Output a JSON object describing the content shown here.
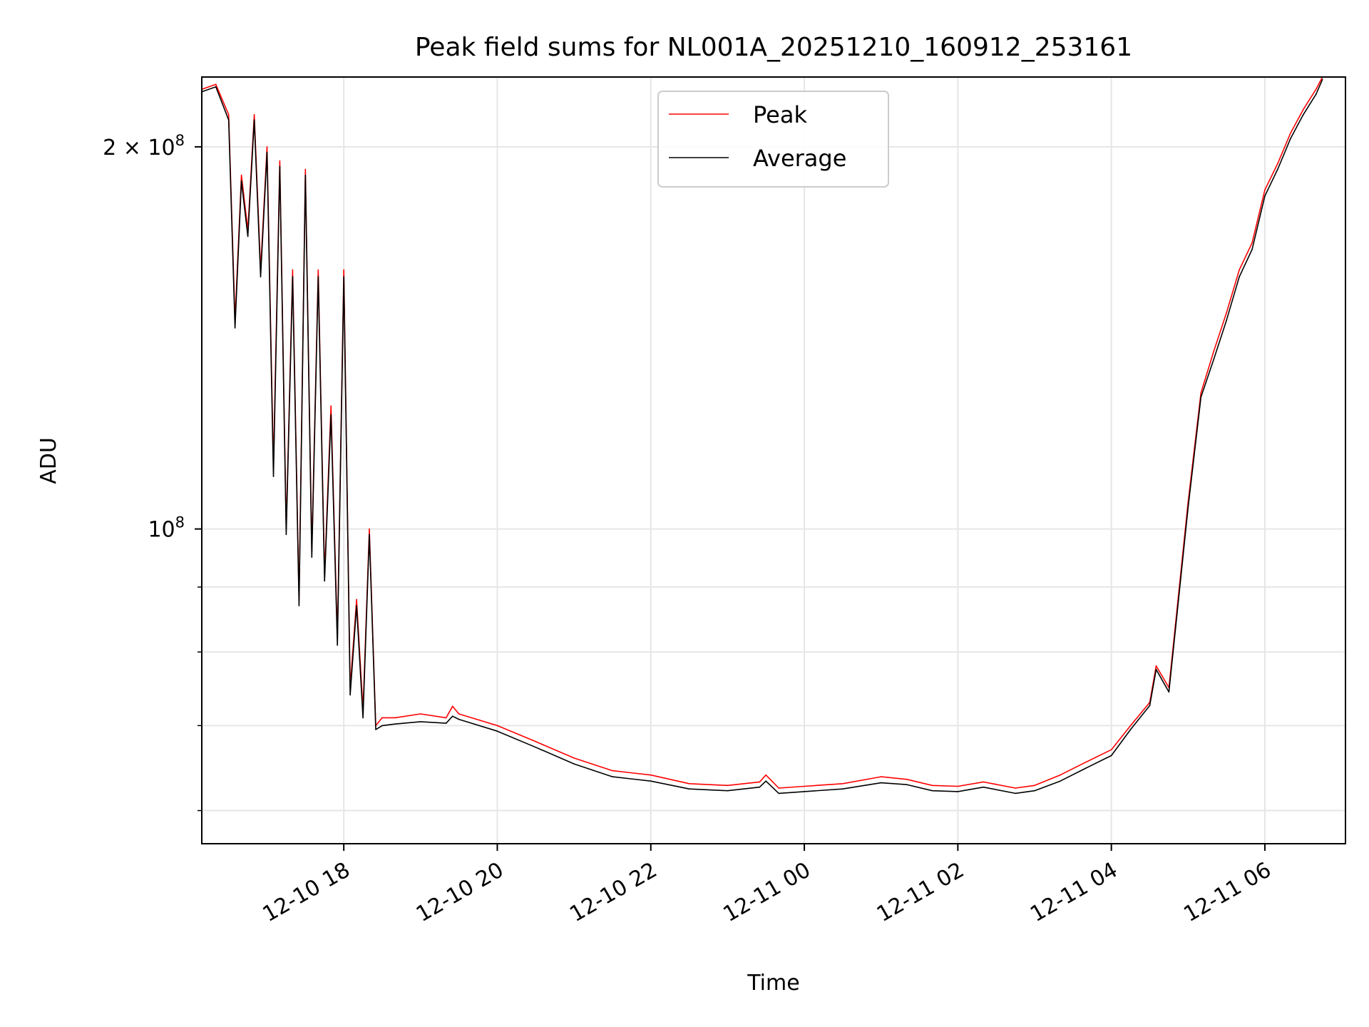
{
  "chart_data": {
    "type": "line",
    "title": "Peak field sums for NL001A_20251210_160912_253161",
    "xlabel": "Time",
    "ylabel": "ADU",
    "yscale": "log",
    "ylim": [
      56500000,
      227000000
    ],
    "xlim": [
      "2025-12-10 16:09",
      "2025-12-11 07:03"
    ],
    "grid": true,
    "legend": {
      "placement": "top-center"
    },
    "x_ticks": [
      "12-10 18",
      "12-10 20",
      "12-10 22",
      "12-11 00",
      "12-11 02",
      "12-11 04",
      "12-11 06"
    ],
    "x_tick_times": [
      "2025-12-10 18:00",
      "2025-12-10 20:00",
      "2025-12-10 22:00",
      "2025-12-11 00:00",
      "2025-12-11 02:00",
      "2025-12-11 04:00",
      "2025-12-11 06:00"
    ],
    "y_major_ticks": [
      {
        "value": 200000000,
        "label_base": "2 × 10",
        "label_exp": "8"
      },
      {
        "value": 100000000,
        "label_base": "10",
        "label_exp": "8"
      }
    ],
    "y_minor_tick_values": [
      60000000,
      70000000,
      80000000,
      90000000
    ],
    "series": [
      {
        "name": "Peak",
        "color": "#ff0000",
        "x": [
          "2025-12-10 16:09",
          "2025-12-10 16:20",
          "2025-12-10 16:30",
          "2025-12-10 16:35",
          "2025-12-10 16:40",
          "2025-12-10 16:45",
          "2025-12-10 16:50",
          "2025-12-10 16:55",
          "2025-12-10 17:00",
          "2025-12-10 17:05",
          "2025-12-10 17:10",
          "2025-12-10 17:15",
          "2025-12-10 17:20",
          "2025-12-10 17:25",
          "2025-12-10 17:30",
          "2025-12-10 17:35",
          "2025-12-10 17:40",
          "2025-12-10 17:45",
          "2025-12-10 17:50",
          "2025-12-10 17:55",
          "2025-12-10 18:00",
          "2025-12-10 18:05",
          "2025-12-10 18:10",
          "2025-12-10 18:15",
          "2025-12-10 18:20",
          "2025-12-10 18:25",
          "2025-12-10 18:30",
          "2025-12-10 18:40",
          "2025-12-10 19:00",
          "2025-12-10 19:20",
          "2025-12-10 19:25",
          "2025-12-10 19:30",
          "2025-12-10 20:00",
          "2025-12-10 20:30",
          "2025-12-10 21:00",
          "2025-12-10 21:30",
          "2025-12-10 22:00",
          "2025-12-10 22:30",
          "2025-12-10 23:00",
          "2025-12-10 23:25",
          "2025-12-10 23:30",
          "2025-12-10 23:40",
          "2025-12-11 00:00",
          "2025-12-11 00:30",
          "2025-12-11 01:00",
          "2025-12-11 01:20",
          "2025-12-11 01:40",
          "2025-12-11 02:00",
          "2025-12-11 02:20",
          "2025-12-11 02:45",
          "2025-12-11 03:00",
          "2025-12-11 03:20",
          "2025-12-11 03:40",
          "2025-12-11 04:00",
          "2025-12-11 04:15",
          "2025-12-11 04:30",
          "2025-12-11 04:35",
          "2025-12-11 04:45",
          "2025-12-11 05:00",
          "2025-12-11 05:10",
          "2025-12-11 05:20",
          "2025-12-11 05:30",
          "2025-12-11 05:40",
          "2025-12-11 05:50",
          "2025-12-11 06:00",
          "2025-12-11 06:10",
          "2025-12-11 06:20",
          "2025-12-11 06:30",
          "2025-12-11 06:40",
          "2025-12-11 06:45"
        ],
        "values": [
          222000000,
          224000000,
          212000000,
          146000000,
          190000000,
          172000000,
          212000000,
          160000000,
          200000000,
          112000000,
          195000000,
          100000000,
          160000000,
          88000000,
          192000000,
          96000000,
          160000000,
          92000000,
          125000000,
          82000000,
          160000000,
          75000000,
          88000000,
          72000000,
          100000000,
          70000000,
          71000000,
          71000000,
          71500000,
          71000000,
          72500000,
          71500000,
          70000000,
          68000000,
          66000000,
          64500000,
          64000000,
          63000000,
          62800000,
          63200000,
          64000000,
          62500000,
          62700000,
          63000000,
          63800000,
          63500000,
          62800000,
          62700000,
          63200000,
          62500000,
          62800000,
          64000000,
          65500000,
          67000000,
          70000000,
          73000000,
          78000000,
          75000000,
          105000000,
          128000000,
          138000000,
          148000000,
          160000000,
          168000000,
          185000000,
          194000000,
          205000000,
          214000000,
          222000000,
          227000000
        ]
      },
      {
        "name": "Average",
        "color": "#000000",
        "x": [
          "2025-12-10 16:09",
          "2025-12-10 16:20",
          "2025-12-10 16:30",
          "2025-12-10 16:35",
          "2025-12-10 16:40",
          "2025-12-10 16:45",
          "2025-12-10 16:50",
          "2025-12-10 16:55",
          "2025-12-10 17:00",
          "2025-12-10 17:05",
          "2025-12-10 17:10",
          "2025-12-10 17:15",
          "2025-12-10 17:20",
          "2025-12-10 17:25",
          "2025-12-10 17:30",
          "2025-12-10 17:35",
          "2025-12-10 17:40",
          "2025-12-10 17:45",
          "2025-12-10 17:50",
          "2025-12-10 17:55",
          "2025-12-10 18:00",
          "2025-12-10 18:05",
          "2025-12-10 18:10",
          "2025-12-10 18:15",
          "2025-12-10 18:20",
          "2025-12-10 18:25",
          "2025-12-10 18:30",
          "2025-12-10 18:40",
          "2025-12-10 19:00",
          "2025-12-10 19:20",
          "2025-12-10 19:25",
          "2025-12-10 19:30",
          "2025-12-10 20:00",
          "2025-12-10 20:30",
          "2025-12-10 21:00",
          "2025-12-10 21:30",
          "2025-12-10 22:00",
          "2025-12-10 22:30",
          "2025-12-10 23:00",
          "2025-12-10 23:25",
          "2025-12-10 23:30",
          "2025-12-10 23:40",
          "2025-12-11 00:00",
          "2025-12-11 00:30",
          "2025-12-11 01:00",
          "2025-12-11 01:20",
          "2025-12-11 01:40",
          "2025-12-11 02:00",
          "2025-12-11 02:20",
          "2025-12-11 02:45",
          "2025-12-11 03:00",
          "2025-12-11 03:20",
          "2025-12-11 03:40",
          "2025-12-11 04:00",
          "2025-12-11 04:15",
          "2025-12-11 04:30",
          "2025-12-11 04:35",
          "2025-12-11 04:45",
          "2025-12-11 05:00",
          "2025-12-11 05:10",
          "2025-12-11 05:20",
          "2025-12-11 05:30",
          "2025-12-11 05:40",
          "2025-12-11 05:50",
          "2025-12-11 06:00",
          "2025-12-11 06:10",
          "2025-12-11 06:20",
          "2025-12-11 06:30",
          "2025-12-11 06:40",
          "2025-12-11 06:45"
        ],
        "values": [
          221000000,
          223000000,
          210000000,
          144000000,
          188000000,
          170000000,
          210000000,
          158000000,
          198000000,
          110000000,
          193000000,
          99000000,
          158000000,
          87000000,
          190000000,
          95000000,
          158000000,
          91000000,
          123000000,
          81000000,
          158000000,
          74000000,
          87000000,
          71000000,
          99000000,
          69500000,
          70000000,
          70200000,
          70500000,
          70300000,
          71200000,
          70800000,
          69300000,
          67300000,
          65300000,
          63800000,
          63300000,
          62400000,
          62200000,
          62600000,
          63300000,
          61900000,
          62100000,
          62400000,
          63100000,
          62900000,
          62200000,
          62100000,
          62600000,
          61900000,
          62200000,
          63300000,
          64800000,
          66300000,
          69500000,
          72600000,
          77500000,
          74400000,
          104000000,
          127000000,
          136000000,
          146000000,
          158000000,
          166000000,
          183000000,
          192000000,
          203000000,
          212000000,
          220000000,
          226000000
        ]
      }
    ]
  }
}
